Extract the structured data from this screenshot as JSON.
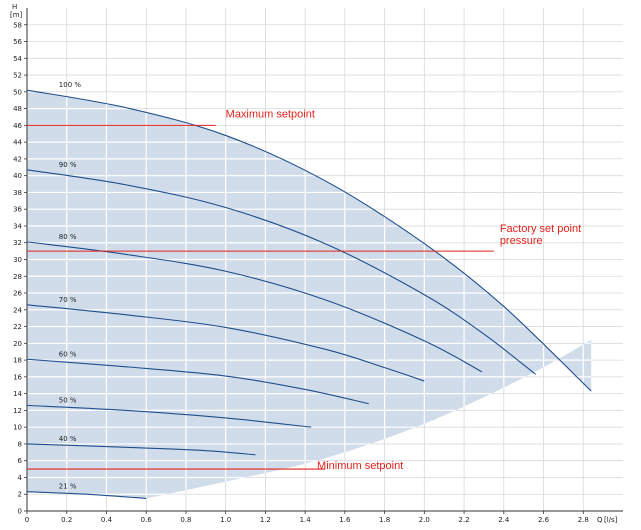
{
  "chart_data": {
    "type": "line",
    "xlabel": "Q",
    "xunit": "[l/s]",
    "ylabel": "H",
    "yunit": "[m]",
    "xlim": [
      0,
      3.0
    ],
    "ylim": [
      0,
      60
    ],
    "x_ticks": [
      0,
      0.2,
      0.4,
      0.6,
      0.8,
      1.0,
      1.2,
      1.4,
      1.6,
      1.8,
      2.0,
      2.2,
      2.4,
      2.6,
      2.8
    ],
    "x_tick_labels": [
      "0",
      "0.2",
      "0.4",
      "0.6",
      "0.8",
      "1.0",
      "1.2",
      "1.4",
      "1.6",
      "1.8",
      "2.0",
      "2.2",
      "2.4",
      "2.6",
      "2.8"
    ],
    "y_ticks": [
      0,
      2,
      4,
      6,
      8,
      10,
      12,
      14,
      16,
      18,
      20,
      22,
      24,
      26,
      28,
      30,
      32,
      34,
      36,
      38,
      40,
      42,
      44,
      46,
      48,
      50,
      52,
      54,
      56,
      58
    ],
    "y_tick_labels": [
      "0",
      "2",
      "4",
      "6",
      "8",
      "10",
      "12",
      "14",
      "16",
      "18",
      "20",
      "22",
      "24",
      "26",
      "28",
      "30",
      "32",
      "34",
      "36",
      "38",
      "40",
      "42",
      "44",
      "46",
      "48",
      "50",
      "52",
      "54",
      "56",
      "58"
    ],
    "grid": true,
    "curve_color": "#1f4e8c",
    "setpoint_color": "#e2231a",
    "shade_color": "#c9d6e6",
    "series": [
      {
        "name": "100 %",
        "x": [
          0,
          0.5,
          1.0,
          1.5,
          2.0,
          2.4,
          2.84
        ],
        "y": [
          50.2,
          48.1,
          44.8,
          39.4,
          31.9,
          24.4,
          14.3
        ]
      },
      {
        "name": "90 %",
        "x": [
          0,
          0.5,
          1.0,
          1.5,
          2.0,
          2.3,
          2.56
        ],
        "y": [
          40.7,
          38.9,
          36.2,
          31.9,
          25.8,
          21.1,
          16.3
        ]
      },
      {
        "name": "80 %",
        "x": [
          0,
          0.5,
          1.0,
          1.5,
          2.0,
          2.29
        ],
        "y": [
          32.1,
          30.6,
          28.6,
          25.2,
          20.3,
          16.6
        ]
      },
      {
        "name": "70 %",
        "x": [
          0,
          0.5,
          1.0,
          1.5,
          1.8,
          2.0
        ],
        "y": [
          24.6,
          23.4,
          21.9,
          19.3,
          17.1,
          15.5
        ]
      },
      {
        "name": "60 %",
        "x": [
          0,
          0.5,
          1.0,
          1.4,
          1.72
        ],
        "y": [
          18.1,
          17.2,
          16.1,
          14.5,
          12.8
        ]
      },
      {
        "name": "50 %",
        "x": [
          0,
          0.5,
          1.0,
          1.43
        ],
        "y": [
          12.6,
          12.0,
          11.1,
          10.0
        ]
      },
      {
        "name": "40 %",
        "x": [
          0,
          0.5,
          0.9,
          1.15
        ],
        "y": [
          8.0,
          7.6,
          7.2,
          6.7
        ]
      },
      {
        "name": "21 %",
        "x": [
          0,
          0.3,
          0.6
        ],
        "y": [
          2.3,
          2.0,
          1.5
        ]
      }
    ],
    "shaded_region_min_curve": {
      "x": [
        0.6,
        1.0,
        1.5,
        2.0,
        2.5,
        2.84
      ],
      "y": [
        1.5,
        3.5,
        6.3,
        10.4,
        15.9,
        20.4
      ]
    },
    "setpoints": [
      {
        "label": "Maximum setpoint",
        "y": 46,
        "x_end": 0.95
      },
      {
        "label": "Factory set point\npressure",
        "y": 31,
        "x_end": 2.35
      },
      {
        "label": "Minimum setpoint",
        "y": 5,
        "x_end": 1.5
      }
    ]
  }
}
